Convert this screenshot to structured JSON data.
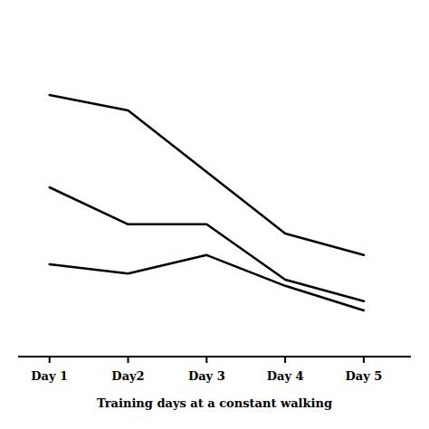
{
  "chart_data": {
    "type": "line",
    "x": [
      1,
      2,
      3,
      4,
      5
    ],
    "xticks": [
      {
        "value": 1,
        "label": "Day 1"
      },
      {
        "value": 2,
        "label": "Day2"
      },
      {
        "value": 3,
        "label": "Day 3"
      },
      {
        "value": 4,
        "label": "Day 4"
      },
      {
        "value": 5,
        "label": "Day 5"
      }
    ],
    "xlim": [
      0.6,
      5.6
    ],
    "ylim": [
      75,
      185
    ],
    "xlabel": "Training days at a constant walking",
    "series": [
      {
        "color": "#000000",
        "values": [
          160,
          155,
          135,
          115,
          108
        ]
      },
      {
        "color": "#000000",
        "values": [
          130,
          118,
          118,
          100,
          93
        ]
      },
      {
        "color": "#000000",
        "values": [
          105,
          102,
          108,
          98,
          90
        ]
      }
    ],
    "grid": false,
    "tick_labels": "x"
  }
}
